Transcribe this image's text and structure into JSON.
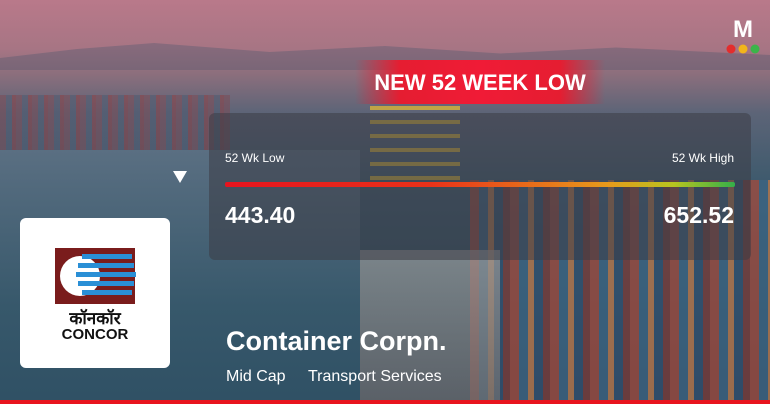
{
  "brand": "M",
  "banner": "NEW 52 WEEK LOW",
  "range": {
    "low_label": "52 Wk Low",
    "high_label": "52 Wk High",
    "low_value": "443.40",
    "high_value": "652.52"
  },
  "company": {
    "name": "Container Corpn.",
    "tags": [
      "Mid Cap",
      "Transport Services"
    ]
  },
  "logo": {
    "script_text": "कॉनकॉर",
    "text": "CONCOR"
  }
}
